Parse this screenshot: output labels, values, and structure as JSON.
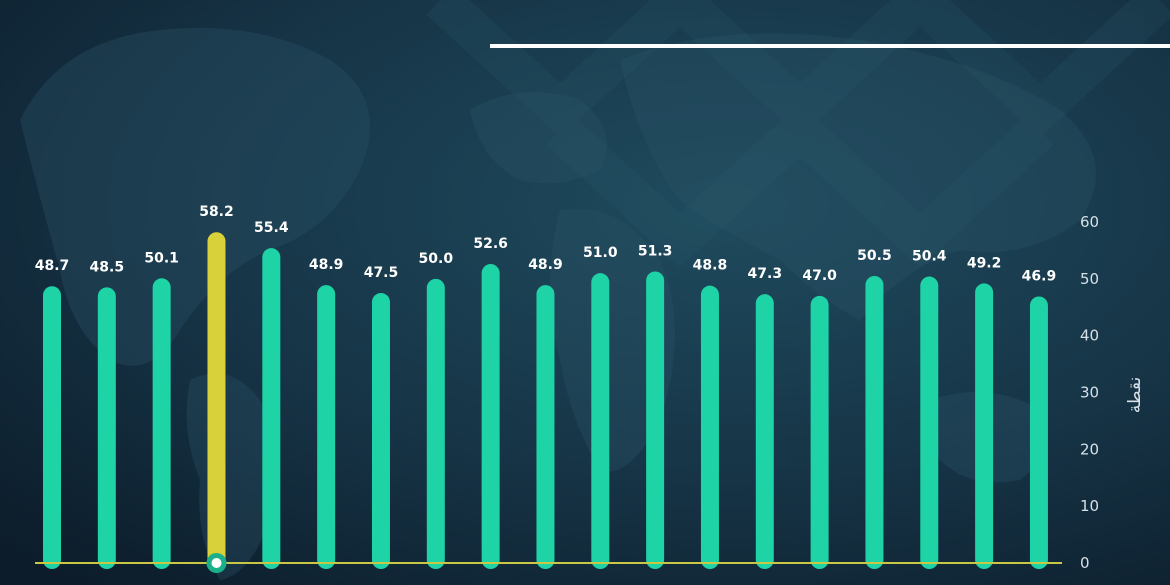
{
  "chart_data": {
    "type": "bar",
    "title": "",
    "xlabel": "",
    "ylabel": "نقطة",
    "ylim": [
      0,
      60
    ],
    "yticks": [
      0,
      10,
      20,
      30,
      40,
      50,
      60
    ],
    "grid": false,
    "legend": "none",
    "values": [
      48.7,
      48.5,
      50.1,
      58.2,
      55.4,
      48.9,
      47.5,
      50.0,
      52.6,
      48.9,
      51.0,
      51.3,
      48.8,
      47.3,
      47.0,
      50.5,
      50.4,
      49.2,
      46.9
    ],
    "labels": [
      "48.7",
      "48.5",
      "50.1",
      "58.2",
      "55.4",
      "48.9",
      "47.5",
      "50.0",
      "52.6",
      "48.9",
      "51.0",
      "51.3",
      "48.8",
      "47.3",
      "47.0",
      "50.5",
      "50.4",
      "49.2",
      "46.9"
    ],
    "highlight_index": 3
  },
  "colors": {
    "bar": "#1ed3a6",
    "highlight_bar": "#d8d13a",
    "baseline": "#c9c743",
    "marker_ring": "#1ab08a",
    "background": "#0f2333"
  }
}
